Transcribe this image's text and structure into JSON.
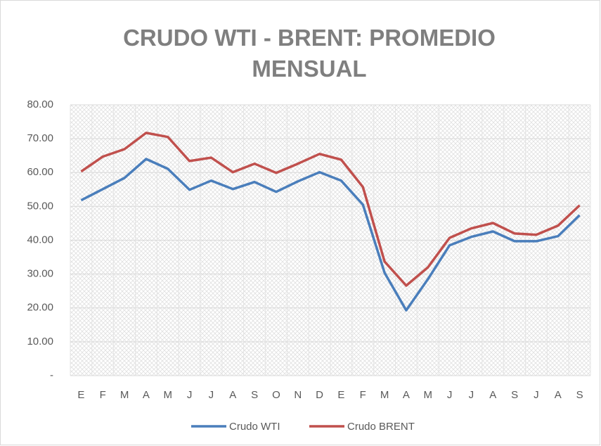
{
  "chart_data": {
    "type": "line",
    "title": "CRUDO WTI - BRENT: PROMEDIO MENSUAL",
    "categories": [
      "E",
      "F",
      "M",
      "A",
      "M",
      "J",
      "J",
      "A",
      "S",
      "O",
      "N",
      "D",
      "E",
      "F",
      "M",
      "A",
      "M",
      "J",
      "J",
      "A",
      "S",
      "J",
      "A",
      "S"
    ],
    "series": [
      {
        "name": "Crudo WTI",
        "color": "#4a7ebb",
        "values": [
          51.8,
          55.1,
          58.4,
          64.0,
          61.1,
          54.9,
          57.6,
          55.1,
          57.2,
          54.3,
          57.4,
          60.1,
          57.6,
          50.5,
          30.4,
          19.3,
          28.5,
          38.5,
          41.0,
          42.6,
          39.7,
          39.7,
          41.2,
          47.4
        ]
      },
      {
        "name": "Crudo BRENT",
        "color": "#c0504d",
        "values": [
          60.3,
          64.7,
          66.9,
          71.7,
          70.5,
          63.4,
          64.4,
          60.1,
          62.6,
          59.9,
          62.6,
          65.5,
          63.8,
          55.7,
          33.7,
          26.6,
          32.0,
          40.7,
          43.5,
          45.1,
          42.0,
          41.6,
          44.3,
          50.3
        ]
      }
    ],
    "ylim": [
      0,
      80
    ],
    "yticks": [
      {
        "value": 0,
        "label": "-"
      },
      {
        "value": 10,
        "label": "10.00"
      },
      {
        "value": 20,
        "label": "20.00"
      },
      {
        "value": 30,
        "label": "30.00"
      },
      {
        "value": 40,
        "label": "40.00"
      },
      {
        "value": 50,
        "label": "50.00"
      },
      {
        "value": 60,
        "label": "60.00"
      },
      {
        "value": 70,
        "label": "70.00"
      },
      {
        "value": 80,
        "label": "80.00"
      }
    ],
    "grid": true,
    "legend": "bottom"
  }
}
